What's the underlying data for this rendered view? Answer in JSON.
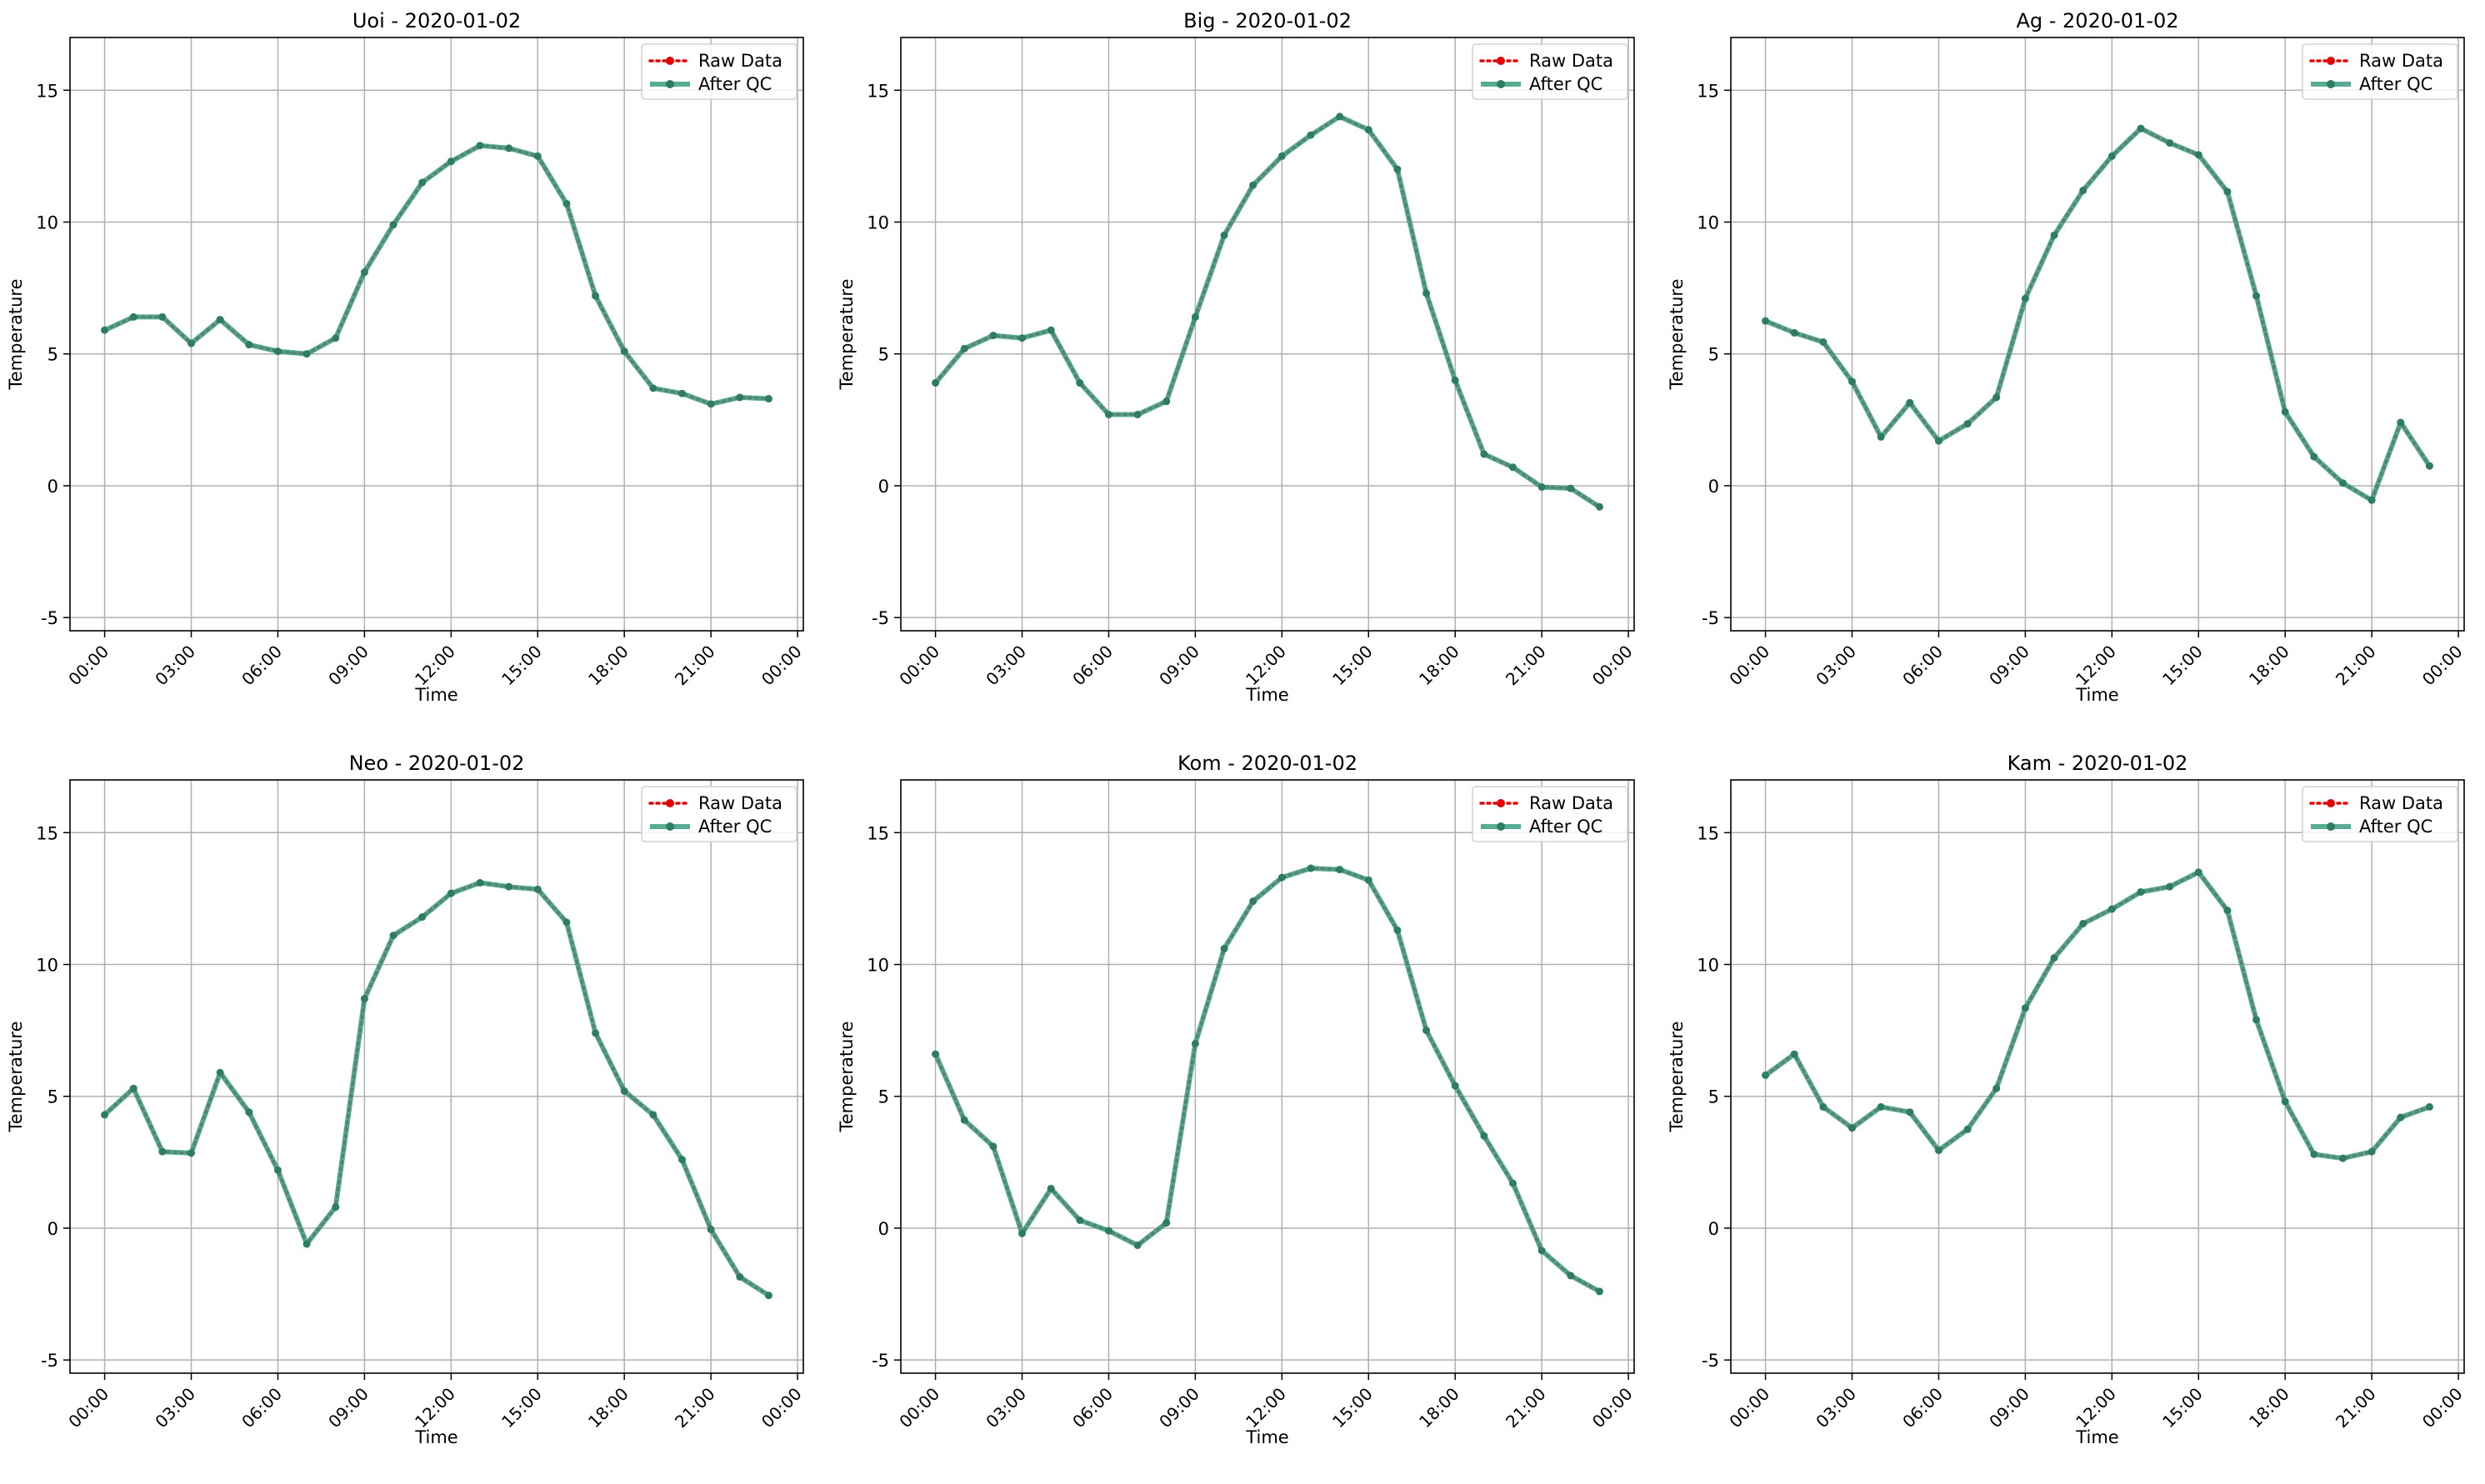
{
  "legend": {
    "raw_label": "Raw Data",
    "qc_label": "After QC"
  },
  "colors": {
    "raw": "#e60000",
    "qc": "#3a9e80",
    "qc_marker": "#2e7d62",
    "grid": "#b0b0b0"
  },
  "chart_data": [
    {
      "type": "line",
      "title": "Uoi - 2020-01-02",
      "xlabel": "Time",
      "ylabel": "Temperature",
      "xlim": [
        -1.2,
        24.2
      ],
      "ylim": [
        -5.5,
        17
      ],
      "yticks": [
        -5,
        0,
        5,
        10,
        15
      ],
      "xticks": [
        "00:00",
        "03:00",
        "06:00",
        "09:00",
        "12:00",
        "15:00",
        "18:00",
        "21:00",
        "00:00"
      ],
      "legend_position": "top-right",
      "grid": true,
      "x": [
        0,
        1,
        2,
        3,
        4,
        5,
        6,
        7,
        8,
        9,
        10,
        11,
        12,
        13,
        14,
        15,
        16,
        17,
        18,
        19,
        20,
        21,
        22,
        23
      ],
      "series": [
        {
          "name": "Raw Data",
          "values": [
            5.9,
            6.4,
            6.4,
            5.4,
            6.3,
            5.35,
            5.1,
            5.0,
            5.6,
            8.1,
            9.9,
            11.5,
            12.3,
            12.9,
            12.8,
            12.5,
            10.7,
            7.2,
            5.1,
            3.7,
            3.5,
            3.1,
            3.35,
            3.3
          ]
        },
        {
          "name": "After QC",
          "values": [
            5.9,
            6.4,
            6.4,
            5.4,
            6.3,
            5.35,
            5.1,
            5.0,
            5.6,
            8.1,
            9.9,
            11.5,
            12.3,
            12.9,
            12.8,
            12.5,
            10.7,
            7.2,
            5.1,
            3.7,
            3.5,
            3.1,
            3.35,
            3.3
          ]
        }
      ]
    },
    {
      "type": "line",
      "title": "Big - 2020-01-02",
      "xlabel": "Time",
      "ylabel": "Temperature",
      "xlim": [
        -1.2,
        24.2
      ],
      "ylim": [
        -5.5,
        17
      ],
      "yticks": [
        -5,
        0,
        5,
        10,
        15
      ],
      "xticks": [
        "00:00",
        "03:00",
        "06:00",
        "09:00",
        "12:00",
        "15:00",
        "18:00",
        "21:00",
        "00:00"
      ],
      "legend_position": "top-right",
      "grid": true,
      "x": [
        0,
        1,
        2,
        3,
        4,
        5,
        6,
        7,
        8,
        9,
        10,
        11,
        12,
        13,
        14,
        15,
        16,
        17,
        18,
        19,
        20,
        21,
        22,
        23
      ],
      "series": [
        {
          "name": "Raw Data",
          "values": [
            3.9,
            5.2,
            5.7,
            5.6,
            5.9,
            3.9,
            2.7,
            2.7,
            3.2,
            6.4,
            9.5,
            11.4,
            12.5,
            13.3,
            14.0,
            13.5,
            12.0,
            7.3,
            4.0,
            1.2,
            0.7,
            -0.05,
            -0.1,
            -0.8
          ]
        },
        {
          "name": "After QC",
          "values": [
            3.9,
            5.2,
            5.7,
            5.6,
            5.9,
            3.9,
            2.7,
            2.7,
            3.2,
            6.4,
            9.5,
            11.4,
            12.5,
            13.3,
            14.0,
            13.5,
            12.0,
            7.3,
            4.0,
            1.2,
            0.7,
            -0.05,
            -0.1,
            -0.8
          ]
        }
      ]
    },
    {
      "type": "line",
      "title": "Ag - 2020-01-02",
      "xlabel": "Time",
      "ylabel": "Temperature",
      "xlim": [
        -1.2,
        24.2
      ],
      "ylim": [
        -5.5,
        17
      ],
      "yticks": [
        -5,
        0,
        5,
        10,
        15
      ],
      "xticks": [
        "00:00",
        "03:00",
        "06:00",
        "09:00",
        "12:00",
        "15:00",
        "18:00",
        "21:00",
        "00:00"
      ],
      "legend_position": "top-right",
      "grid": true,
      "x": [
        0,
        1,
        2,
        3,
        4,
        5,
        6,
        7,
        8,
        9,
        10,
        11,
        12,
        13,
        14,
        15,
        16,
        17,
        18,
        19,
        20,
        21,
        22,
        23
      ],
      "series": [
        {
          "name": "Raw Data",
          "values": [
            6.25,
            5.8,
            5.45,
            3.95,
            1.85,
            3.15,
            1.7,
            2.35,
            3.35,
            7.1,
            9.5,
            11.2,
            12.5,
            13.55,
            13.0,
            12.55,
            11.15,
            7.2,
            2.8,
            1.1,
            0.1,
            -0.55,
            2.4,
            0.75
          ]
        },
        {
          "name": "After QC",
          "values": [
            6.25,
            5.8,
            5.45,
            3.95,
            1.85,
            3.15,
            1.7,
            2.35,
            3.35,
            7.1,
            9.5,
            11.2,
            12.5,
            13.55,
            13.0,
            12.55,
            11.15,
            7.2,
            2.8,
            1.1,
            0.1,
            -0.55,
            2.4,
            0.75
          ]
        }
      ]
    },
    {
      "type": "line",
      "title": "Neo - 2020-01-02",
      "xlabel": "Time",
      "ylabel": "Temperature",
      "xlim": [
        -1.2,
        24.2
      ],
      "ylim": [
        -5.5,
        17
      ],
      "yticks": [
        -5,
        0,
        5,
        10,
        15
      ],
      "xticks": [
        "00:00",
        "03:00",
        "06:00",
        "09:00",
        "12:00",
        "15:00",
        "18:00",
        "21:00",
        "00:00"
      ],
      "legend_position": "top-right",
      "grid": true,
      "x": [
        0,
        1,
        2,
        3,
        4,
        5,
        6,
        7,
        8,
        9,
        10,
        11,
        12,
        13,
        14,
        15,
        16,
        17,
        18,
        19,
        20,
        21,
        22,
        23
      ],
      "series": [
        {
          "name": "Raw Data",
          "values": [
            4.3,
            5.3,
            2.9,
            2.85,
            5.9,
            4.4,
            2.2,
            -0.6,
            0.8,
            8.7,
            11.1,
            11.8,
            12.7,
            13.1,
            12.95,
            12.85,
            11.6,
            7.4,
            5.2,
            4.3,
            2.6,
            -0.05,
            -1.85,
            -2.55
          ]
        },
        {
          "name": "After QC",
          "values": [
            4.3,
            5.3,
            2.9,
            2.85,
            5.9,
            4.4,
            2.2,
            -0.6,
            0.8,
            8.7,
            11.1,
            11.8,
            12.7,
            13.1,
            12.95,
            12.85,
            11.6,
            7.4,
            5.2,
            4.3,
            2.6,
            -0.05,
            -1.85,
            -2.55
          ]
        }
      ]
    },
    {
      "type": "line",
      "title": "Kom - 2020-01-02",
      "xlabel": "Time",
      "ylabel": "Temperature",
      "xlim": [
        -1.2,
        24.2
      ],
      "ylim": [
        -5.5,
        17
      ],
      "yticks": [
        -5,
        0,
        5,
        10,
        15
      ],
      "xticks": [
        "00:00",
        "03:00",
        "06:00",
        "09:00",
        "12:00",
        "15:00",
        "18:00",
        "21:00",
        "00:00"
      ],
      "legend_position": "top-right",
      "grid": true,
      "x": [
        0,
        1,
        2,
        3,
        4,
        5,
        6,
        7,
        8,
        9,
        10,
        11,
        12,
        13,
        14,
        15,
        16,
        17,
        18,
        19,
        20,
        21,
        22,
        23
      ],
      "series": [
        {
          "name": "Raw Data",
          "values": [
            6.6,
            4.1,
            3.1,
            -0.2,
            1.5,
            0.3,
            -0.1,
            -0.65,
            0.2,
            7.0,
            10.6,
            12.4,
            13.3,
            13.65,
            13.6,
            13.2,
            11.3,
            7.5,
            5.4,
            3.5,
            1.7,
            -0.85,
            -1.8,
            -2.4
          ]
        },
        {
          "name": "After QC",
          "values": [
            6.6,
            4.1,
            3.1,
            -0.2,
            1.5,
            0.3,
            -0.1,
            -0.65,
            0.2,
            7.0,
            10.6,
            12.4,
            13.3,
            13.65,
            13.6,
            13.2,
            11.3,
            7.5,
            5.4,
            3.5,
            1.7,
            -0.85,
            -1.8,
            -2.4
          ]
        }
      ]
    },
    {
      "type": "line",
      "title": "Kam - 2020-01-02",
      "xlabel": "Time",
      "ylabel": "Temperature",
      "xlim": [
        -1.2,
        24.2
      ],
      "ylim": [
        -5.5,
        17
      ],
      "yticks": [
        -5,
        0,
        5,
        10,
        15
      ],
      "xticks": [
        "00:00",
        "03:00",
        "06:00",
        "09:00",
        "12:00",
        "15:00",
        "18:00",
        "21:00",
        "00:00"
      ],
      "legend_position": "top-right",
      "grid": true,
      "x": [
        0,
        1,
        2,
        3,
        4,
        5,
        6,
        7,
        8,
        9,
        10,
        11,
        12,
        13,
        14,
        15,
        16,
        17,
        18,
        19,
        20,
        21,
        22,
        23
      ],
      "series": [
        {
          "name": "Raw Data",
          "values": [
            5.8,
            6.6,
            4.6,
            3.8,
            4.6,
            4.4,
            2.95,
            3.75,
            5.3,
            8.35,
            10.25,
            11.55,
            12.1,
            12.75,
            12.95,
            13.5,
            12.05,
            7.9,
            4.8,
            2.8,
            2.65,
            2.9,
            4.2,
            4.6
          ]
        },
        {
          "name": "After QC",
          "values": [
            5.8,
            6.6,
            4.6,
            3.8,
            4.6,
            4.4,
            2.95,
            3.75,
            5.3,
            8.35,
            10.25,
            11.55,
            12.1,
            12.75,
            12.95,
            13.5,
            12.05,
            7.9,
            4.8,
            2.8,
            2.65,
            2.9,
            4.2,
            4.6
          ]
        }
      ]
    }
  ]
}
